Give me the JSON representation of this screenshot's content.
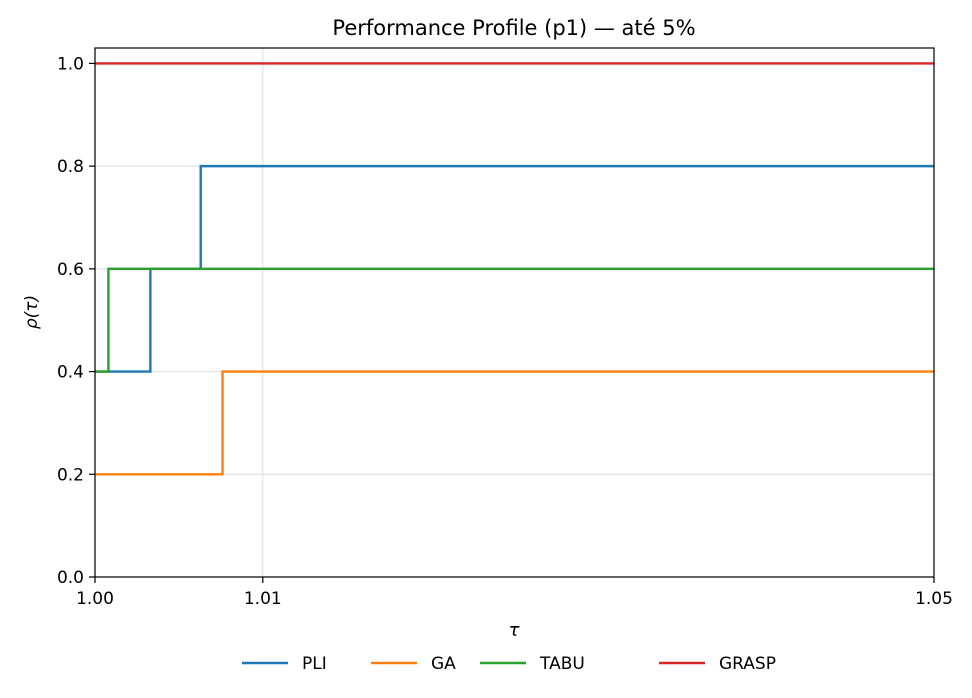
{
  "chart_data": {
    "type": "line",
    "step": "post",
    "title": "Performance Profile (p1) — até 5%",
    "xlabel": "τ",
    "ylabel": "ρ(τ)",
    "xlim": [
      1.0,
      1.05
    ],
    "ylim": [
      0.0,
      1.03
    ],
    "xticks": [
      {
        "value": 1.0,
        "label": "1.00"
      },
      {
        "value": 1.01,
        "label": "1.01"
      },
      {
        "value": 1.05,
        "label": "1.05"
      }
    ],
    "yticks": [
      {
        "value": 0.0,
        "label": "0.0"
      },
      {
        "value": 0.2,
        "label": "0.2"
      },
      {
        "value": 0.4,
        "label": "0.4"
      },
      {
        "value": 0.6,
        "label": "0.6"
      },
      {
        "value": 0.8,
        "label": "0.8"
      },
      {
        "value": 1.0,
        "label": "1.0"
      }
    ],
    "grid": true,
    "legend": "bottom",
    "series": [
      {
        "name": "PLI",
        "color": "#1f77b4",
        "x": [
          1.0,
          1.0033,
          1.0063,
          1.05
        ],
        "y": [
          0.4,
          0.6,
          0.8,
          0.8
        ]
      },
      {
        "name": "GA",
        "color": "#ff7f0e",
        "x": [
          1.0,
          1.0076,
          1.05
        ],
        "y": [
          0.2,
          0.4,
          0.4
        ]
      },
      {
        "name": "TABU",
        "color": "#2ca02c",
        "x": [
          1.0,
          1.0008,
          1.05
        ],
        "y": [
          0.4,
          0.6,
          0.6
        ]
      },
      {
        "name": "GRASP",
        "color": "#d62728",
        "x": [
          1.0,
          1.05
        ],
        "y": [
          1.0,
          1.0
        ]
      }
    ]
  }
}
